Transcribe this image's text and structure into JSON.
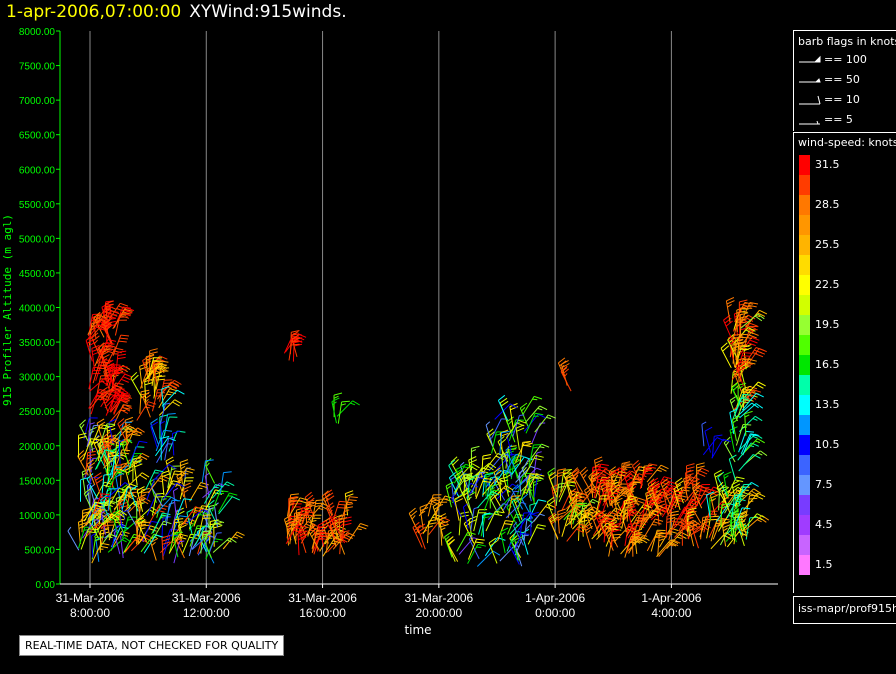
{
  "header": {
    "datetime": "1-apr-2006,07:00:00",
    "title": "XYWind:915winds."
  },
  "chart_data": {
    "type": "scatter",
    "subtype": "wind-barb time-height plot",
    "xlabel": "time",
    "ylabel": "915 Profiler Altitude (m agl)",
    "ylim": [
      0,
      8000
    ],
    "yticks": [
      "0.00",
      "500.00",
      "1000.00",
      "1500.00",
      "2000.00",
      "2500.00",
      "3000.00",
      "3500.00",
      "4000.00",
      "4500.00",
      "5000.00",
      "5500.00",
      "6000.00",
      "6500.00",
      "7000.00",
      "7500.00",
      "8000.00"
    ],
    "xlim_hours": [
      7.5,
      25.8
    ],
    "xticks": [
      {
        "hour": 8,
        "line1": "31-Mar-2006",
        "line2": "8:00:00"
      },
      {
        "hour": 12,
        "line1": "31-Mar-2006",
        "line2": "12:00:00"
      },
      {
        "hour": 16,
        "line1": "31-Mar-2006",
        "line2": "16:00:00"
      },
      {
        "hour": 20,
        "line1": "31-Mar-2006",
        "line2": "20:00:00"
      },
      {
        "hour": 24,
        "line1": "1-Apr-2006",
        "line2": "0:00:00"
      },
      {
        "hour": 28,
        "line1": "1-Apr-2006",
        "line2": "4:00:00"
      }
    ],
    "grid": "vertical",
    "clusters": [
      {
        "h0": 7.9,
        "h1": 8.9,
        "a0": 2300,
        "a1": 3800,
        "s0": 29,
        "s1": 33,
        "n": 70
      },
      {
        "h0": 9.6,
        "h1": 10.4,
        "a0": 2300,
        "a1": 3100,
        "s0": 21,
        "s1": 31,
        "n": 28
      },
      {
        "h0": 10.2,
        "h1": 10.9,
        "a0": 1700,
        "a1": 2600,
        "s0": 9,
        "s1": 15,
        "n": 16
      },
      {
        "h0": 7.6,
        "h1": 9.4,
        "a0": 300,
        "a1": 2100,
        "s0": 6,
        "s1": 31,
        "n": 150
      },
      {
        "h0": 9.4,
        "h1": 12.6,
        "a0": 300,
        "a1": 1500,
        "s0": 6,
        "s1": 31,
        "n": 110
      },
      {
        "h0": 14.7,
        "h1": 16.9,
        "a0": 400,
        "a1": 1000,
        "s0": 24,
        "s1": 33,
        "n": 60
      },
      {
        "h0": 14.6,
        "h1": 15.3,
        "a0": 3200,
        "a1": 3400,
        "s0": 30,
        "s1": 33,
        "n": 6
      },
      {
        "h0": 16.3,
        "h1": 16.6,
        "a0": 2300,
        "a1": 2700,
        "s0": 16,
        "s1": 18,
        "n": 4
      },
      {
        "h0": 19.3,
        "h1": 20.2,
        "a0": 500,
        "a1": 1000,
        "s0": 22,
        "s1": 31,
        "n": 14
      },
      {
        "h0": 20.4,
        "h1": 23.3,
        "a0": 250,
        "a1": 1700,
        "s0": 6,
        "s1": 25,
        "n": 130
      },
      {
        "h0": 21.8,
        "h1": 23.3,
        "a0": 1500,
        "a1": 2450,
        "s0": 6,
        "s1": 25,
        "n": 34
      },
      {
        "h0": 24.0,
        "h1": 25.0,
        "a0": 600,
        "a1": 1400,
        "s0": 18,
        "s1": 31,
        "n": 40
      },
      {
        "h0": 25.2,
        "h1": 27.7,
        "a0": 350,
        "a1": 1500,
        "s0": 24,
        "s1": 33,
        "n": 120
      },
      {
        "h0": 27.8,
        "h1": 29.3,
        "a0": 500,
        "a1": 1200,
        "s0": 24,
        "s1": 33,
        "n": 40
      },
      {
        "h0": 29.3,
        "h1": 30.6,
        "a0": 500,
        "a1": 1300,
        "s0": 13,
        "s1": 27,
        "n": 50
      },
      {
        "h0": 30.0,
        "h1": 30.6,
        "a0": 2500,
        "a1": 3800,
        "s0": 20,
        "s1": 33,
        "n": 50
      },
      {
        "h0": 30.1,
        "h1": 30.6,
        "a0": 1500,
        "a1": 2600,
        "s0": 12,
        "s1": 20,
        "n": 25
      },
      {
        "h0": 29.0,
        "h1": 29.6,
        "a0": 1800,
        "a1": 2000,
        "s0": 9,
        "s1": 12,
        "n": 5
      },
      {
        "h0": 24.4,
        "h1": 24.6,
        "a0": 2700,
        "a1": 3000,
        "s0": 26,
        "s1": 30,
        "n": 3
      },
      {
        "h0": 28.2,
        "h1": 28.9,
        "a0": 1200,
        "a1": 1450,
        "s0": 26,
        "s1": 31,
        "n": 6
      }
    ]
  },
  "barb_key": {
    "title": "barb flags in knots",
    "items": [
      {
        "label": "== 100",
        "type": "flag"
      },
      {
        "label": "== 50",
        "type": "pennant"
      },
      {
        "label": "== 10",
        "type": "full"
      },
      {
        "label": "== 5",
        "type": "half"
      }
    ]
  },
  "colorbar": {
    "title": "wind-speed: knots",
    "bins": [
      {
        "label": "31.5",
        "color": "#ff0000"
      },
      {
        "label": "",
        "color": "#ff3c00"
      },
      {
        "label": "28.5",
        "color": "#ff7800"
      },
      {
        "label": "",
        "color": "#ff9600"
      },
      {
        "label": "25.5",
        "color": "#ffb400"
      },
      {
        "label": "",
        "color": "#ffdc00"
      },
      {
        "label": "22.5",
        "color": "#ffff00"
      },
      {
        "label": "",
        "color": "#d2ff00"
      },
      {
        "label": "19.5",
        "color": "#96ff32"
      },
      {
        "label": "",
        "color": "#50ff00"
      },
      {
        "label": "16.5",
        "color": "#00e600"
      },
      {
        "label": "",
        "color": "#00ffaa"
      },
      {
        "label": "13.5",
        "color": "#00ffff"
      },
      {
        "label": "",
        "color": "#0096ff"
      },
      {
        "label": "10.5",
        "color": "#0000ff"
      },
      {
        "label": "",
        "color": "#3c64ff"
      },
      {
        "label": "7.5",
        "color": "#6496ff"
      },
      {
        "label": "",
        "color": "#783cff"
      },
      {
        "label": "4.5",
        "color": "#a03cff"
      },
      {
        "label": "",
        "color": "#c864ff"
      },
      {
        "label": "1.5",
        "color": "#ff78ff"
      }
    ]
  },
  "source_label": "iss-mapr/prof915h",
  "quality_note": "REAL-TIME DATA, NOT CHECKED FOR QUALITY",
  "colors": {
    "axis": "#00ff00",
    "grid": "#888888",
    "header_date": "#ffff00",
    "text": "#ffffff"
  }
}
